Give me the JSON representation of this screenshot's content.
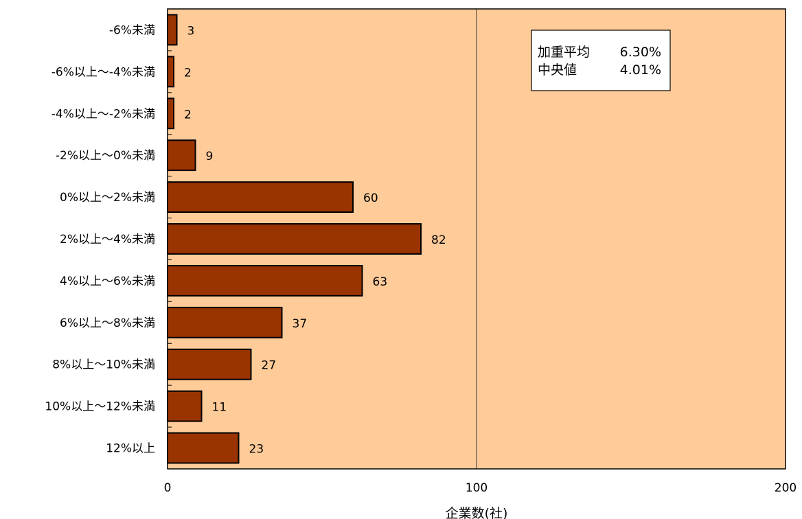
{
  "chart_data": {
    "type": "bar",
    "orientation": "horizontal",
    "categories": [
      "-6%未満",
      "-6%以上～-4%未満",
      "-4%以上～-2%未満",
      "-2%以上～0%未満",
      "0%以上～2%未満",
      "2%以上～4%未満",
      "4%以上～6%未満",
      "6%以上～8%未満",
      "8%以上～10%未満",
      "10%以上～12%未満",
      "12%以上"
    ],
    "values": [
      3,
      2,
      2,
      9,
      60,
      82,
      63,
      37,
      27,
      11,
      23
    ],
    "xlabel": "企業数(社)",
    "xlim": [
      0,
      200
    ],
    "xticks": [
      0,
      100,
      200
    ],
    "grid": "vertical line at 100",
    "colors": {
      "plot_bg": "#FFCC99",
      "bar": "#993300",
      "bar_edge": "#000000"
    },
    "annotation": {
      "lines": [
        {
          "label": "加重平均",
          "value": "6.30%"
        },
        {
          "label": "中央値",
          "value": "4.01%"
        }
      ]
    }
  }
}
